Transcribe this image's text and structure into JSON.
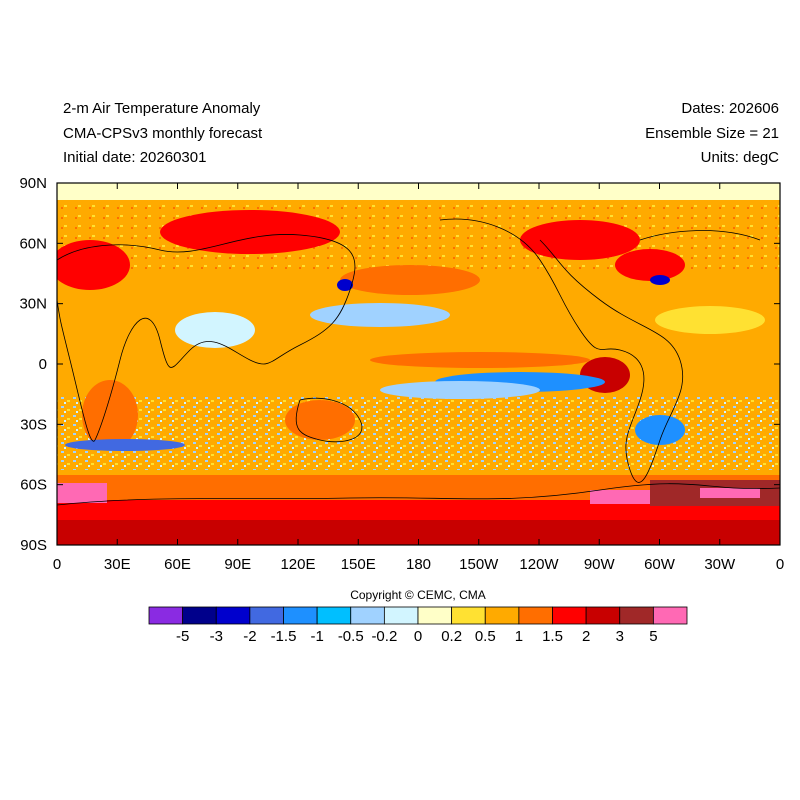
{
  "header": {
    "title_line1": "2-m Air Temperature Anomaly",
    "title_line2": "CMA-CPSv3 monthly forecast",
    "title_line3": "Initial date: 20260301",
    "right_line1": "Dates: 202606",
    "right_line2": "Ensemble Size = 21",
    "right_line3": "Units: degC"
  },
  "map": {
    "projection": "cylindrical equidistant",
    "lat_labels": [
      "90N",
      "60N",
      "30N",
      "0",
      "30S",
      "60S",
      "90S"
    ],
    "lon_labels": [
      "0",
      "30E",
      "60E",
      "90E",
      "120E",
      "150E",
      "180",
      "150W",
      "120W",
      "90W",
      "60W",
      "30W",
      "0"
    ]
  },
  "copyright": "Copyright © CEMC, CMA",
  "colorbar": {
    "colors": [
      "#8a2be2",
      "#00008b",
      "#0000cd",
      "#4169e1",
      "#1e90ff",
      "#00bfff",
      "#a0d2ff",
      "#d2f5ff",
      "#ffffc8",
      "#ffe132",
      "#ffaa00",
      "#ff6e00",
      "#ff0000",
      "#c80000",
      "#a02828",
      "#ff69b4"
    ],
    "labels": [
      "-5",
      "-3",
      "-2",
      "-1.5",
      "-1",
      "-0.5",
      "-0.2",
      "0",
      "0.2",
      "0.5",
      "1",
      "1.5",
      "2",
      "3",
      "5"
    ]
  }
}
